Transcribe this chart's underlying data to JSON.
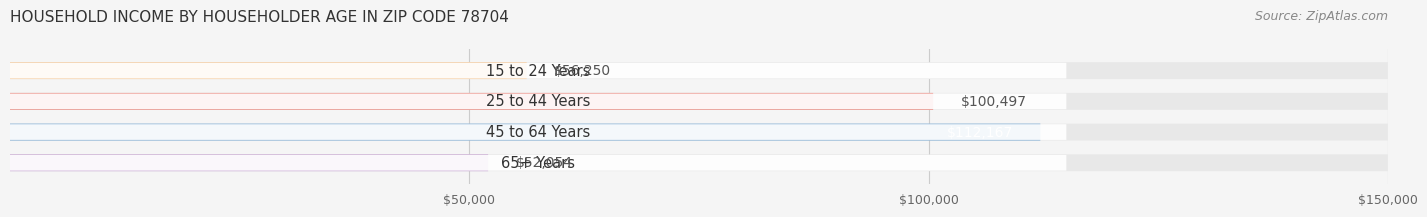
{
  "title": "HOUSEHOLD INCOME BY HOUSEHOLDER AGE IN ZIP CODE 78704",
  "source": "Source: ZipAtlas.com",
  "categories": [
    "15 to 24 Years",
    "25 to 44 Years",
    "45 to 64 Years",
    "65+ Years"
  ],
  "values": [
    56250,
    100497,
    112167,
    52054
  ],
  "bar_colors": [
    "#f5c99a",
    "#e8837a",
    "#7aaad4",
    "#c9a8d4"
  ],
  "label_colors": [
    "#555555",
    "#555555",
    "#ffffff",
    "#555555"
  ],
  "bg_color": "#f5f5f5",
  "bar_bg_color": "#e8e8e8",
  "xlim": [
    0,
    150000
  ],
  "xticks": [
    0,
    50000,
    100000,
    150000
  ],
  "xtick_labels": [
    "$50,000",
    "$100,000",
    "$150,000"
  ],
  "bar_height": 0.55,
  "value_labels": [
    "$56,250",
    "$100,497",
    "$112,167",
    "$52,054"
  ],
  "title_fontsize": 11,
  "label_fontsize": 10.5,
  "value_fontsize": 10,
  "source_fontsize": 9
}
